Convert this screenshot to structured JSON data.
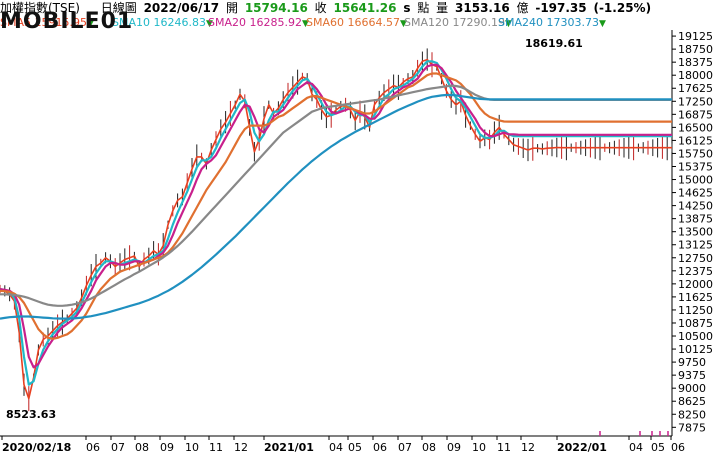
{
  "header": {
    "name": "加權指數(TSE)",
    "period": "日線圖",
    "date": "2022/06/17",
    "open_label": "開",
    "open_value": "15794.16",
    "close_label": "收",
    "close_value": "15641.26",
    "unit_s": "s",
    "pts_label": "點",
    "volume_label": "量",
    "volume_value": "3153.16",
    "volume_unit": "億",
    "change": "-197.35",
    "change_pct": "(-1.25%)"
  },
  "legend": [
    {
      "name": "SMA5",
      "value": "15915.95",
      "color": "#e84020"
    },
    {
      "name": "SMA10",
      "value": "16246.83",
      "color": "#20b8c8"
    },
    {
      "name": "SMA20",
      "value": "16285.92",
      "color": "#c8208c"
    },
    {
      "name": "SMA60",
      "value": "16664.57",
      "color": "#e07030"
    },
    {
      "name": "SMA120",
      "value": "17290.19",
      "color": "#888888"
    },
    {
      "name": "SMA240",
      "value": "17303.73",
      "color": "#2090c0"
    }
  ],
  "logo_text": "MOBILE01",
  "chart_data": {
    "type": "line",
    "ylim": [
      7625,
      19300
    ],
    "yticks": [
      "19125",
      "18750",
      "18375",
      "18000",
      "17625",
      "17250",
      "16875",
      "16500",
      "16125",
      "15750",
      "15375",
      "15000",
      "14625",
      "14250",
      "13875",
      "13500",
      "13125",
      "12750",
      "12375",
      "12000",
      "11625",
      "11250",
      "10875",
      "10500",
      "10125",
      "9750",
      "9375",
      "9000",
      "8625",
      "8250",
      "7875"
    ],
    "xticks": [
      "2020/02/18",
      "06",
      "07",
      "08",
      "09",
      "10",
      "11",
      "12",
      "2021/01",
      "04",
      "05",
      "06",
      "07",
      "08",
      "09",
      "10",
      "11",
      "12",
      "2022/01",
      "04",
      "05",
      "06"
    ],
    "x": [
      0,
      5,
      10,
      15,
      20,
      25,
      30,
      35,
      40,
      45,
      50,
      55,
      60,
      65,
      70,
      75,
      80,
      85,
      90,
      95,
      100,
      105,
      110,
      115,
      120,
      125,
      130,
      135,
      140,
      145,
      150,
      155,
      160,
      165,
      170,
      175,
      180,
      185,
      190,
      195,
      200,
      205,
      210,
      215,
      220,
      225,
      230,
      235,
      240,
      245,
      250,
      255,
      260,
      265,
      270,
      275,
      280,
      285,
      290,
      295,
      300,
      305,
      310,
      315,
      320,
      325,
      330,
      335,
      340,
      345,
      350,
      355,
      360,
      365,
      370,
      375,
      380,
      385,
      390,
      395,
      400,
      405,
      410,
      415,
      420,
      425,
      430,
      435,
      440,
      445,
      450,
      455,
      460,
      465,
      470,
      475,
      480,
      485,
      490,
      495,
      500,
      505,
      510,
      515,
      520,
      525,
      530,
      535,
      540,
      545,
      550,
      555,
      560,
      565,
      570,
      575,
      580,
      585,
      590,
      595,
      600,
      605,
      610,
      615,
      620,
      625,
      630,
      635,
      640,
      645,
      650,
      655,
      660,
      665,
      670,
      675,
      680,
      685,
      690,
      695,
      700
    ],
    "series": [
      {
        "name": "SMA5",
        "color": "#e84020",
        "values": [
          11850,
          11800,
          11700,
          11500,
          10600,
          9100,
          8700,
          9300,
          10100,
          10400,
          10500,
          10650,
          10800,
          10900,
          11000,
          11150,
          11300,
          11600,
          11950,
          12250,
          12500,
          12600,
          12750,
          12650,
          12500,
          12600,
          12700,
          12750,
          12800,
          12500,
          12700,
          12800,
          12950,
          12850,
          13100,
          13700,
          14100,
          14400,
          14500,
          14900,
          15300,
          15650,
          15650,
          15450,
          15850,
          16150,
          16450,
          16650,
          16900,
          17150,
          17450,
          17250,
          16500,
          15800,
          16150,
          16750,
          17150,
          16900,
          17050,
          17300,
          17500,
          17650,
          17800,
          17950,
          17900,
          17450,
          17300,
          17000,
          16800,
          16850,
          17000,
          17100,
          17150,
          17000,
          16700,
          16950,
          16800,
          16500,
          17150,
          17350,
          17500,
          17600,
          17700,
          17650,
          17800,
          17900,
          17950,
          18200,
          18400,
          18450,
          18300,
          18250,
          17900,
          17550,
          17300,
          17150,
          17250,
          16850,
          16550,
          16300,
          16100,
          16200,
          16150,
          16350,
          16500,
          16300,
          16150,
          16000,
          15950,
          15900,
          15850,
          15900,
          15900,
          15880,
          15900,
          15910,
          15920,
          15915,
          15915,
          15915,
          15915,
          15915,
          15915,
          15915,
          15915,
          15915,
          15915,
          15915,
          15915,
          15915,
          15915,
          15915,
          15915,
          15915,
          15915,
          15915,
          15915,
          15915,
          15915,
          15915,
          15915
        ]
      },
      {
        "name": "SMA10",
        "color": "#20b8c8",
        "values": [
          11850,
          11820,
          11750,
          11600,
          11000,
          9900,
          9100,
          9200,
          9700,
          10100,
          10350,
          10550,
          10700,
          10850,
          10950,
          11050,
          11200,
          11450,
          11750,
          12050,
          12300,
          12500,
          12650,
          12650,
          12600,
          12550,
          12600,
          12650,
          12700,
          12650,
          12600,
          12700,
          12800,
          12850,
          12950,
          13300,
          13700,
          14050,
          14350,
          14650,
          15000,
          15350,
          15550,
          15550,
          15650,
          15900,
          16200,
          16450,
          16700,
          16950,
          17200,
          17300,
          16950,
          16350,
          16100,
          16300,
          16700,
          16950,
          16950,
          17150,
          17350,
          17550,
          17700,
          17850,
          17900,
          17700,
          17450,
          17200,
          16950,
          16850,
          16900,
          17000,
          17100,
          17100,
          16950,
          16850,
          16850,
          16650,
          16850,
          17100,
          17350,
          17450,
          17600,
          17650,
          17700,
          17800,
          17900,
          18050,
          18250,
          18400,
          18400,
          18350,
          18150,
          17900,
          17600,
          17350,
          17250,
          17050,
          16800,
          16550,
          16300,
          16200,
          16200,
          16250,
          16400,
          16400,
          16300,
          16250,
          16250,
          16246,
          16246,
          16246,
          16246,
          16246,
          16246,
          16246,
          16246,
          16246,
          16246,
          16246,
          16246,
          16246,
          16246,
          16246,
          16246,
          16246,
          16246,
          16246,
          16246,
          16246,
          16246,
          16246,
          16246,
          16246,
          16246,
          16246,
          16246,
          16246,
          16246,
          16246,
          16246
        ]
      },
      {
        "name": "SMA20",
        "color": "#c8208c",
        "values": [
          11850,
          11830,
          11800,
          11700,
          11400,
          10700,
          9900,
          9600,
          9700,
          9950,
          10200,
          10400,
          10600,
          10750,
          10850,
          10950,
          11100,
          11300,
          11550,
          11800,
          12100,
          12300,
          12500,
          12600,
          12600,
          12550,
          12550,
          12600,
          12650,
          12650,
          12600,
          12650,
          12700,
          12800,
          12900,
          13100,
          13400,
          13750,
          14050,
          14350,
          14650,
          15000,
          15300,
          15450,
          15550,
          15700,
          15950,
          16200,
          16450,
          16700,
          16950,
          17150,
          17100,
          16800,
          16450,
          16350,
          16550,
          16800,
          16900,
          17000,
          17200,
          17400,
          17600,
          17700,
          17800,
          17750,
          17600,
          17400,
          17150,
          16950,
          16900,
          16950,
          17000,
          17050,
          17000,
          16900,
          16850,
          16750,
          16750,
          16900,
          17150,
          17300,
          17450,
          17550,
          17650,
          17700,
          17800,
          17900,
          18100,
          18250,
          18300,
          18300,
          18200,
          18000,
          17800,
          17550,
          17350,
          17150,
          16950,
          16750,
          16500,
          16350,
          16250,
          16250,
          16300,
          16350,
          16300,
          16300,
          16290,
          16286,
          16286,
          16286,
          16286,
          16286,
          16286,
          16286,
          16286,
          16286,
          16286,
          16286,
          16286,
          16286,
          16286,
          16286,
          16286,
          16286,
          16286,
          16286,
          16286,
          16286,
          16286,
          16286,
          16286,
          16286,
          16286,
          16286,
          16286,
          16286,
          16286,
          16286,
          16286
        ]
      },
      {
        "name": "SMA60",
        "color": "#e07030",
        "values": [
          11800,
          11790,
          11770,
          11720,
          11620,
          11450,
          11200,
          10950,
          10700,
          10550,
          10450,
          10420,
          10450,
          10500,
          10550,
          10650,
          10800,
          10950,
          11150,
          11400,
          11650,
          11850,
          12000,
          12150,
          12250,
          12350,
          12400,
          12450,
          12500,
          12550,
          12600,
          12650,
          12700,
          12750,
          12800,
          12900,
          13050,
          13250,
          13450,
          13700,
          13950,
          14200,
          14450,
          14700,
          14900,
          15100,
          15300,
          15500,
          15750,
          16000,
          16250,
          16450,
          16550,
          16550,
          16550,
          16550,
          16600,
          16700,
          16800,
          16850,
          16950,
          17050,
          17150,
          17250,
          17350,
          17400,
          17400,
          17350,
          17300,
          17250,
          17200,
          17150,
          17100,
          17050,
          17000,
          16950,
          16900,
          16900,
          16950,
          17050,
          17150,
          17250,
          17350,
          17450,
          17550,
          17650,
          17700,
          17800,
          17900,
          18000,
          18050,
          18050,
          18000,
          17950,
          17900,
          17850,
          17750,
          17600,
          17450,
          17250,
          17050,
          16900,
          16800,
          16750,
          16700,
          16670,
          16665,
          16665,
          16665,
          16665,
          16665,
          16665,
          16665,
          16665,
          16665,
          16665,
          16665,
          16665,
          16665,
          16665,
          16665,
          16665,
          16665,
          16665,
          16665,
          16665,
          16665,
          16665,
          16665,
          16665,
          16665,
          16665,
          16665,
          16665,
          16665,
          16665,
          16665,
          16665,
          16665,
          16665,
          16665
        ]
      },
      {
        "name": "SMA120",
        "color": "#888888",
        "values": [
          11700,
          11700,
          11690,
          11680,
          11660,
          11630,
          11590,
          11540,
          11490,
          11440,
          11400,
          11380,
          11370,
          11370,
          11380,
          11400,
          11430,
          11470,
          11520,
          11580,
          11650,
          11730,
          11810,
          11890,
          11970,
          12050,
          12130,
          12200,
          12280,
          12350,
          12430,
          12510,
          12590,
          12670,
          12760,
          12860,
          12970,
          13090,
          13220,
          13360,
          13500,
          13650,
          13800,
          13950,
          14100,
          14250,
          14400,
          14550,
          14700,
          14850,
          15000,
          15150,
          15300,
          15450,
          15600,
          15750,
          15900,
          16050,
          16200,
          16350,
          16450,
          16550,
          16650,
          16750,
          16850,
          16950,
          17000,
          17050,
          17080,
          17100,
          17120,
          17140,
          17160,
          17180,
          17200,
          17220,
          17240,
          17260,
          17280,
          17300,
          17330,
          17360,
          17390,
          17420,
          17450,
          17480,
          17510,
          17540,
          17570,
          17600,
          17620,
          17640,
          17660,
          17680,
          17700,
          17690,
          17660,
          17600,
          17520,
          17440,
          17380,
          17330,
          17300,
          17290,
          17290,
          17290,
          17290,
          17290,
          17290,
          17290,
          17290,
          17290,
          17290,
          17290,
          17290,
          17290,
          17290,
          17290,
          17290,
          17290,
          17290,
          17290,
          17290,
          17290,
          17290,
          17290,
          17290,
          17290,
          17290,
          17290,
          17290,
          17290,
          17290,
          17290,
          17290,
          17290,
          17290,
          17290,
          17290,
          17290,
          17290
        ]
      },
      {
        "name": "SMA240",
        "color": "#2090c0",
        "values": [
          11000,
          11020,
          11040,
          11050,
          11060,
          11060,
          11060,
          11050,
          11040,
          11030,
          11020,
          11010,
          11005,
          11000,
          11000,
          11005,
          11015,
          11030,
          11050,
          11070,
          11100,
          11130,
          11160,
          11200,
          11240,
          11280,
          11320,
          11360,
          11400,
          11440,
          11490,
          11540,
          11600,
          11660,
          11730,
          11800,
          11880,
          11970,
          12060,
          12160,
          12260,
          12370,
          12480,
          12600,
          12720,
          12840,
          12970,
          13100,
          13230,
          13360,
          13500,
          13640,
          13780,
          13920,
          14060,
          14200,
          14340,
          14480,
          14620,
          14760,
          14900,
          15030,
          15160,
          15290,
          15410,
          15530,
          15640,
          15750,
          15850,
          15950,
          16040,
          16130,
          16210,
          16290,
          16370,
          16440,
          16510,
          16580,
          16650,
          16720,
          16790,
          16860,
          16930,
          17000,
          17060,
          17120,
          17180,
          17240,
          17290,
          17340,
          17380,
          17400,
          17420,
          17430,
          17430,
          17420,
          17400,
          17380,
          17360,
          17340,
          17320,
          17310,
          17305,
          17304,
          17304,
          17304,
          17304,
          17304,
          17304,
          17304,
          17304,
          17304,
          17304,
          17304,
          17304,
          17304,
          17304,
          17304,
          17304,
          17304,
          17304,
          17304,
          17304,
          17304,
          17304,
          17304,
          17304,
          17304,
          17304,
          17304,
          17304,
          17304,
          17304,
          17304,
          17304,
          17304,
          17304,
          17304,
          17304,
          17304,
          17304
        ]
      }
    ],
    "annotations": [
      {
        "text": "18619.61",
        "kind": "high"
      },
      {
        "text": "8523.63",
        "kind": "low"
      }
    ]
  }
}
